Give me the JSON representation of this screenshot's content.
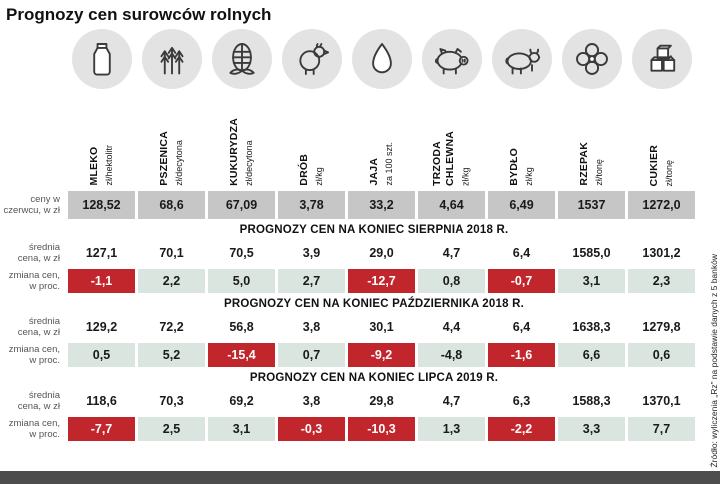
{
  "chart_data": {
    "type": "table",
    "title": "Prognozy cen surowców rolnych",
    "source": "Źródło: wyliczenia „Rz” na podstawie danych z 5 banków",
    "columns": [
      {
        "name": "MLEKO",
        "unit": "zł/hektolitr",
        "icon": "milk-bottle-icon"
      },
      {
        "name": "PSZENICA",
        "unit": "zł/decytona",
        "icon": "wheat-icon"
      },
      {
        "name": "KUKURYDZA",
        "unit": "zł/decytona",
        "icon": "corn-icon"
      },
      {
        "name": "DRÓB",
        "unit": "zł/kg",
        "icon": "chicken-icon"
      },
      {
        "name": "JAJA",
        "unit": "za 100 szt.",
        "icon": "egg-icon"
      },
      {
        "name": "TRZODA CHLEWNA",
        "unit": "zł/kg",
        "icon": "pig-icon"
      },
      {
        "name": "BYDŁO",
        "unit": "zł/kg",
        "icon": "cow-icon"
      },
      {
        "name": "RZEPAK",
        "unit": "zł/tonę",
        "icon": "rapeseed-flower-icon"
      },
      {
        "name": "CUKIER",
        "unit": "zł/tonę",
        "icon": "sugar-cubes-icon"
      }
    ],
    "june": {
      "label": "ceny w czerwcu, w zł",
      "values": [
        "128,52",
        "68,6",
        "67,09",
        "3,78",
        "33,2",
        "4,64",
        "6,49",
        "1537",
        "1272,0"
      ]
    },
    "row_labels": {
      "price": "średnia cena, w zł",
      "change": "zmiana cen, w proc."
    },
    "sections": [
      {
        "header": "PROGNOZY CEN NA KONIEC SIERPNIA 2018 R.",
        "prices": [
          "127,1",
          "70,1",
          "70,5",
          "3,9",
          "29,0",
          "4,7",
          "6,4",
          "1585,0",
          "1301,2"
        ],
        "changes": [
          "-1,1",
          "2,2",
          "5,0",
          "2,7",
          "-12,7",
          "0,8",
          "-0,7",
          "3,1",
          "2,3"
        ],
        "changes_red": [
          true,
          false,
          false,
          false,
          true,
          false,
          true,
          false,
          false
        ]
      },
      {
        "header": "PROGNOZY CEN NA KONIEC PAŹDZIERNIKA 2018 R.",
        "prices": [
          "129,2",
          "72,2",
          "56,8",
          "3,8",
          "30,1",
          "4,4",
          "6,4",
          "1638,3",
          "1279,8"
        ],
        "changes": [
          "0,5",
          "5,2",
          "-15,4",
          "0,7",
          "-9,2",
          "-4,8",
          "-1,6",
          "6,6",
          "0,6"
        ],
        "changes_red": [
          false,
          false,
          true,
          false,
          true,
          false,
          true,
          false,
          false
        ]
      },
      {
        "header": "PROGNOZY CEN NA KONIEC LIPCA 2019 R.",
        "prices": [
          "118,6",
          "70,3",
          "69,2",
          "3,8",
          "29,8",
          "4,7",
          "6,3",
          "1588,3",
          "1370,1"
        ],
        "changes": [
          "-7,7",
          "2,5",
          "3,1",
          "-0,3",
          "-10,3",
          "1,3",
          "-2,2",
          "3,3",
          "7,7"
        ],
        "changes_red": [
          true,
          false,
          false,
          true,
          true,
          false,
          true,
          false,
          false
        ]
      }
    ],
    "colors": {
      "negative_red": "#c0262c",
      "change_bg": "#dbe5df",
      "june_bg": "#c6c6c6",
      "circle_bg": "#e3e3e3",
      "bottom_bar": "#4d4d4d"
    }
  }
}
